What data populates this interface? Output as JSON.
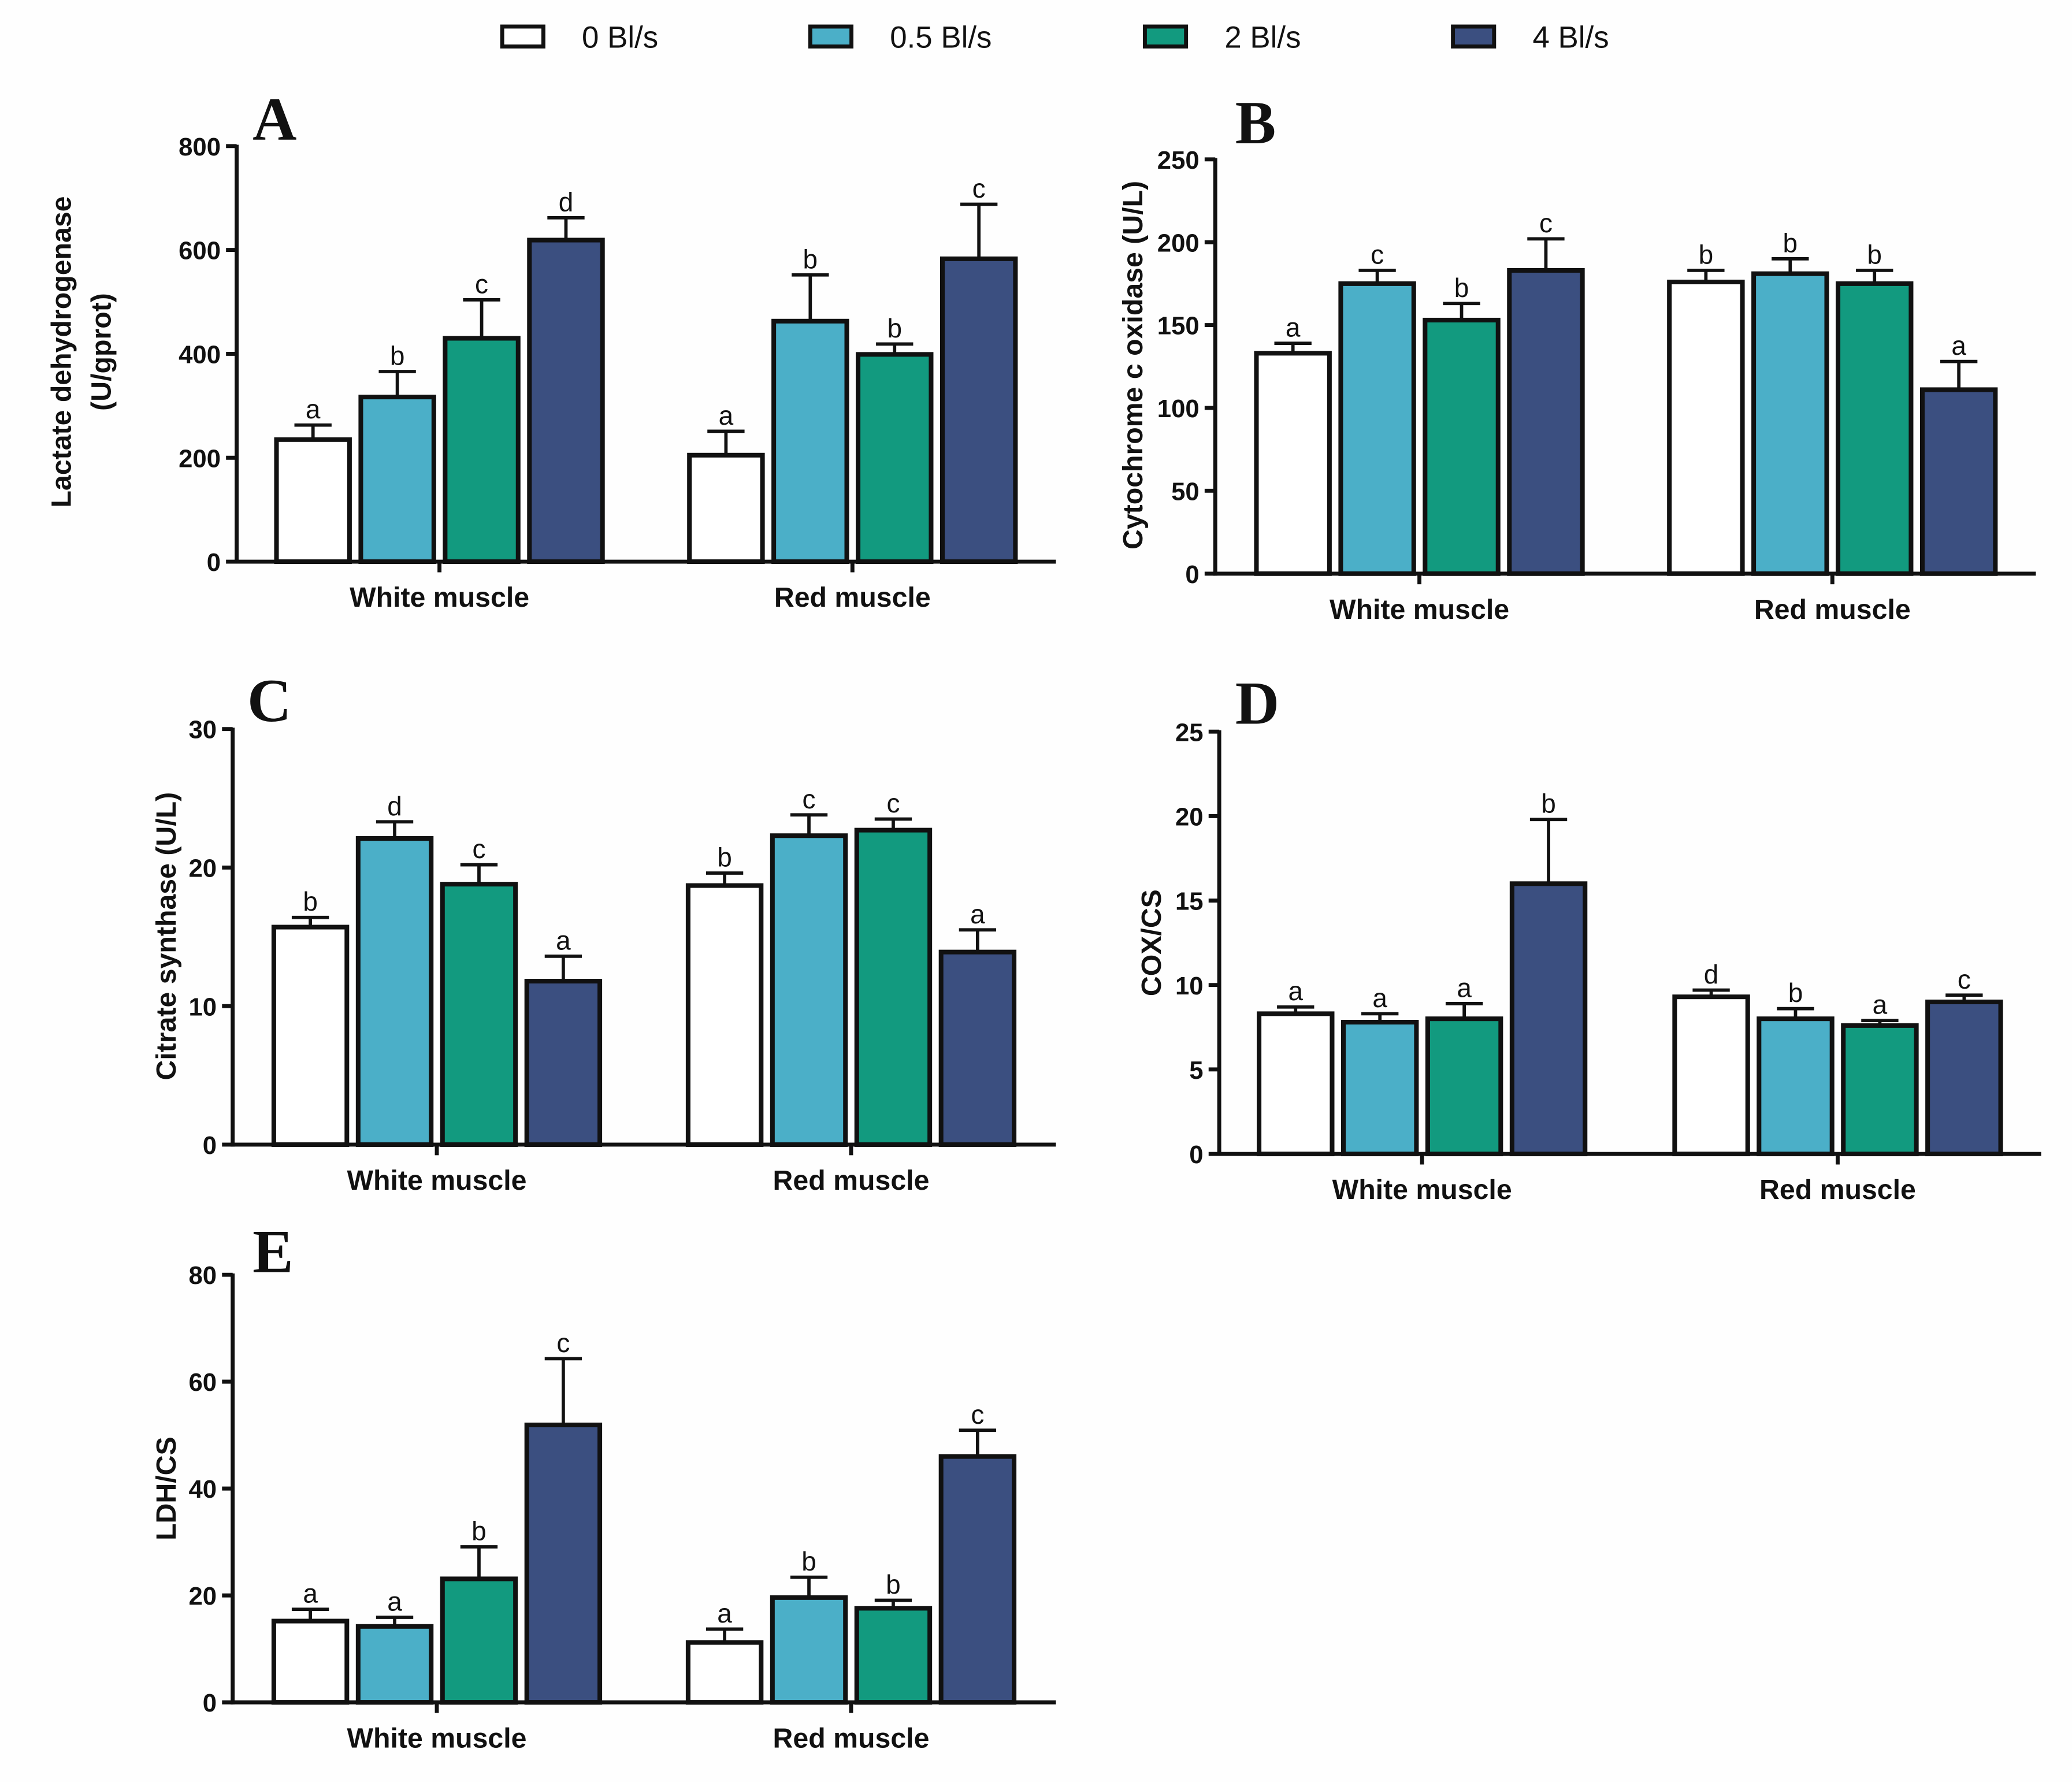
{
  "chart_data": {
    "legend": {
      "placement": "top-center",
      "entries": [
        {
          "label": "0 Bl/s",
          "color": "#ffffff"
        },
        {
          "label": "0.5 Bl/s",
          "color": "#4bafc8"
        },
        {
          "label": "2 Bl/s",
          "color": "#129a7f"
        },
        {
          "label": "4 Bl/s",
          "color": "#3b4f80"
        }
      ]
    },
    "panels": [
      {
        "letter": "A",
        "type": "bar",
        "ylabel": [
          "Lactate dehydrogenase",
          "(U/gprot)"
        ],
        "ylim": [
          0,
          800
        ],
        "yticks": [
          0,
          200,
          400,
          600,
          800
        ],
        "categories": [
          "White muscle",
          "Red muscle"
        ],
        "series": [
          {
            "name": "0 Bl/s",
            "values": [
              235,
              205
            ],
            "errors": [
              28,
              46
            ],
            "letters": [
              "a",
              "a"
            ]
          },
          {
            "name": "0.5 Bl/s",
            "values": [
              317,
              463
            ],
            "errors": [
              49,
              89
            ],
            "letters": [
              "b",
              "b"
            ]
          },
          {
            "name": "2 Bl/s",
            "values": [
              430,
              399
            ],
            "errors": [
              74,
              20
            ],
            "letters": [
              "c",
              "b"
            ]
          },
          {
            "name": "4 Bl/s",
            "values": [
              619,
              583
            ],
            "errors": [
              43,
              105
            ],
            "letters": [
              "d",
              "c"
            ]
          }
        ]
      },
      {
        "letter": "B",
        "type": "bar",
        "ylabel": [
          "Cytochrome c oxidase (U/L)"
        ],
        "ylim": [
          0,
          250
        ],
        "yticks": [
          0,
          50,
          100,
          150,
          200,
          250
        ],
        "categories": [
          "White muscle",
          "Red muscle"
        ],
        "series": [
          {
            "name": "0 Bl/s",
            "values": [
              133,
              176
            ],
            "errors": [
              6,
              7
            ],
            "letters": [
              "a",
              "b"
            ]
          },
          {
            "name": "0.5 Bl/s",
            "values": [
              175,
              181
            ],
            "errors": [
              8,
              9
            ],
            "letters": [
              "c",
              "b"
            ]
          },
          {
            "name": "2 Bl/s",
            "values": [
              153,
              175
            ],
            "errors": [
              10,
              8
            ],
            "letters": [
              "b",
              "b"
            ]
          },
          {
            "name": "4 Bl/s",
            "values": [
              183,
              111
            ],
            "errors": [
              19,
              17
            ],
            "letters": [
              "c",
              "a"
            ]
          }
        ]
      },
      {
        "letter": "C",
        "type": "bar",
        "ylabel": [
          "Citrate synthase (U/L)"
        ],
        "ylim": [
          0,
          30
        ],
        "yticks": [
          0,
          10,
          20,
          30
        ],
        "categories": [
          "White muscle",
          "Red muscle"
        ],
        "series": [
          {
            "name": "0 Bl/s",
            "values": [
              15.7,
              18.7
            ],
            "errors": [
              0.7,
              0.9
            ],
            "letters": [
              "b",
              "b"
            ]
          },
          {
            "name": "0.5 Bl/s",
            "values": [
              22.1,
              22.3
            ],
            "errors": [
              1.2,
              1.5
            ],
            "letters": [
              "d",
              "c"
            ]
          },
          {
            "name": "2 Bl/s",
            "values": [
              18.8,
              22.7
            ],
            "errors": [
              1.4,
              0.8
            ],
            "letters": [
              "c",
              "c"
            ]
          },
          {
            "name": "4 Bl/s",
            "values": [
              11.8,
              13.9
            ],
            "errors": [
              1.8,
              1.6
            ],
            "letters": [
              "a",
              "a"
            ]
          }
        ]
      },
      {
        "letter": "D",
        "type": "bar",
        "ylabel": [
          "COX/CS"
        ],
        "ylim": [
          0,
          25
        ],
        "yticks": [
          0,
          5,
          10,
          15,
          20,
          25
        ],
        "categories": [
          "White muscle",
          "Red muscle"
        ],
        "series": [
          {
            "name": "0 Bl/s",
            "values": [
              8.3,
              9.3
            ],
            "errors": [
              0.4,
              0.4
            ],
            "letters": [
              "a",
              "d"
            ]
          },
          {
            "name": "0.5 Bl/s",
            "values": [
              7.8,
              8.0
            ],
            "errors": [
              0.5,
              0.6
            ],
            "letters": [
              "a",
              "b"
            ]
          },
          {
            "name": "2 Bl/s",
            "values": [
              8.0,
              7.6
            ],
            "errors": [
              0.9,
              0.3
            ],
            "letters": [
              "a",
              "a"
            ]
          },
          {
            "name": "4 Bl/s",
            "values": [
              16.0,
              9.0
            ],
            "errors": [
              3.8,
              0.4
            ],
            "letters": [
              "b",
              "c"
            ]
          }
        ]
      },
      {
        "letter": "E",
        "type": "bar",
        "ylabel": [
          "LDH/CS"
        ],
        "ylim": [
          0,
          80
        ],
        "yticks": [
          0,
          20,
          40,
          60,
          80
        ],
        "categories": [
          "White muscle",
          "Red muscle"
        ],
        "series": [
          {
            "name": "0 Bl/s",
            "values": [
              15.2,
              11.2
            ],
            "errors": [
              2.2,
              2.5
            ],
            "letters": [
              "a",
              "a"
            ]
          },
          {
            "name": "0.5 Bl/s",
            "values": [
              14.2,
              19.6
            ],
            "errors": [
              1.7,
              3.8
            ],
            "letters": [
              "a",
              "b"
            ]
          },
          {
            "name": "2 Bl/s",
            "values": [
              23.1,
              17.6
            ],
            "errors": [
              6.0,
              1.5
            ],
            "letters": [
              "b",
              "b"
            ]
          },
          {
            "name": "4 Bl/s",
            "values": [
              51.9,
              46.0
            ],
            "errors": [
              12.4,
              4.9
            ],
            "letters": [
              "c",
              "c"
            ]
          }
        ]
      }
    ]
  }
}
